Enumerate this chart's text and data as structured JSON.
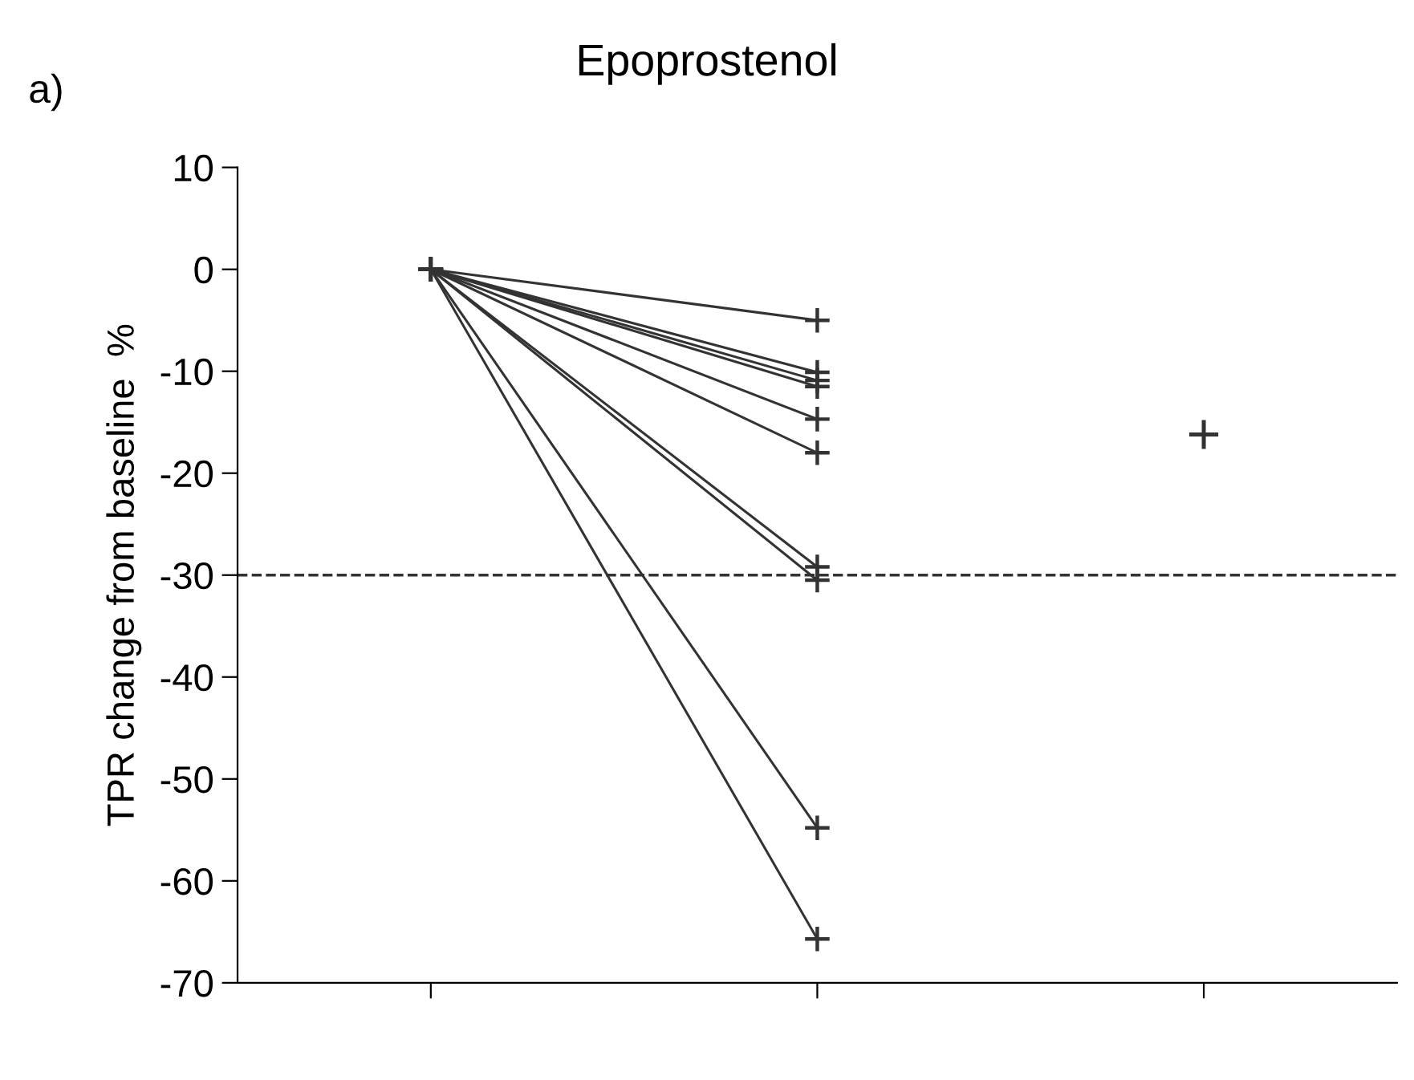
{
  "chart_data": {
    "type": "line",
    "title": "Epoprostenol",
    "ylabel": "TPR change from baseline  %",
    "annotations": [
      "a)"
    ],
    "categories": [
      null,
      null,
      null
    ],
    "ylim": [
      -70,
      10
    ],
    "yticks": [
      10,
      0,
      -10,
      -20,
      -30,
      -40,
      -50,
      -60,
      -70
    ],
    "marker": "cross",
    "line_style": "solid",
    "ref_lines": [
      {
        "axis": "y",
        "value": -30,
        "line_style": "dashed",
        "color": "#333333"
      }
    ],
    "series": [
      {
        "color": "#333333",
        "values": [
          0,
          -5,
          null
        ]
      },
      {
        "color": "#333333",
        "values": [
          0,
          -10.1,
          null
        ]
      },
      {
        "color": "#333333",
        "values": [
          0,
          -10.9,
          null
        ]
      },
      {
        "color": "#333333",
        "values": [
          0,
          -11.5,
          null
        ]
      },
      {
        "color": "#333333",
        "values": [
          0,
          -14.7,
          null
        ]
      },
      {
        "color": "#333333",
        "values": [
          0,
          -18,
          null
        ]
      },
      {
        "color": "#333333",
        "values": [
          0,
          -29.2,
          null
        ]
      },
      {
        "color": "#333333",
        "values": [
          0,
          -30.5,
          null
        ]
      },
      {
        "color": "#333333",
        "values": [
          0,
          -54.8,
          null
        ]
      },
      {
        "color": "#333333",
        "values": [
          0,
          -65.7,
          null
        ]
      },
      {
        "type": "scatter",
        "color": "#333333",
        "values": [
          null,
          null,
          -16.2
        ]
      }
    ]
  }
}
